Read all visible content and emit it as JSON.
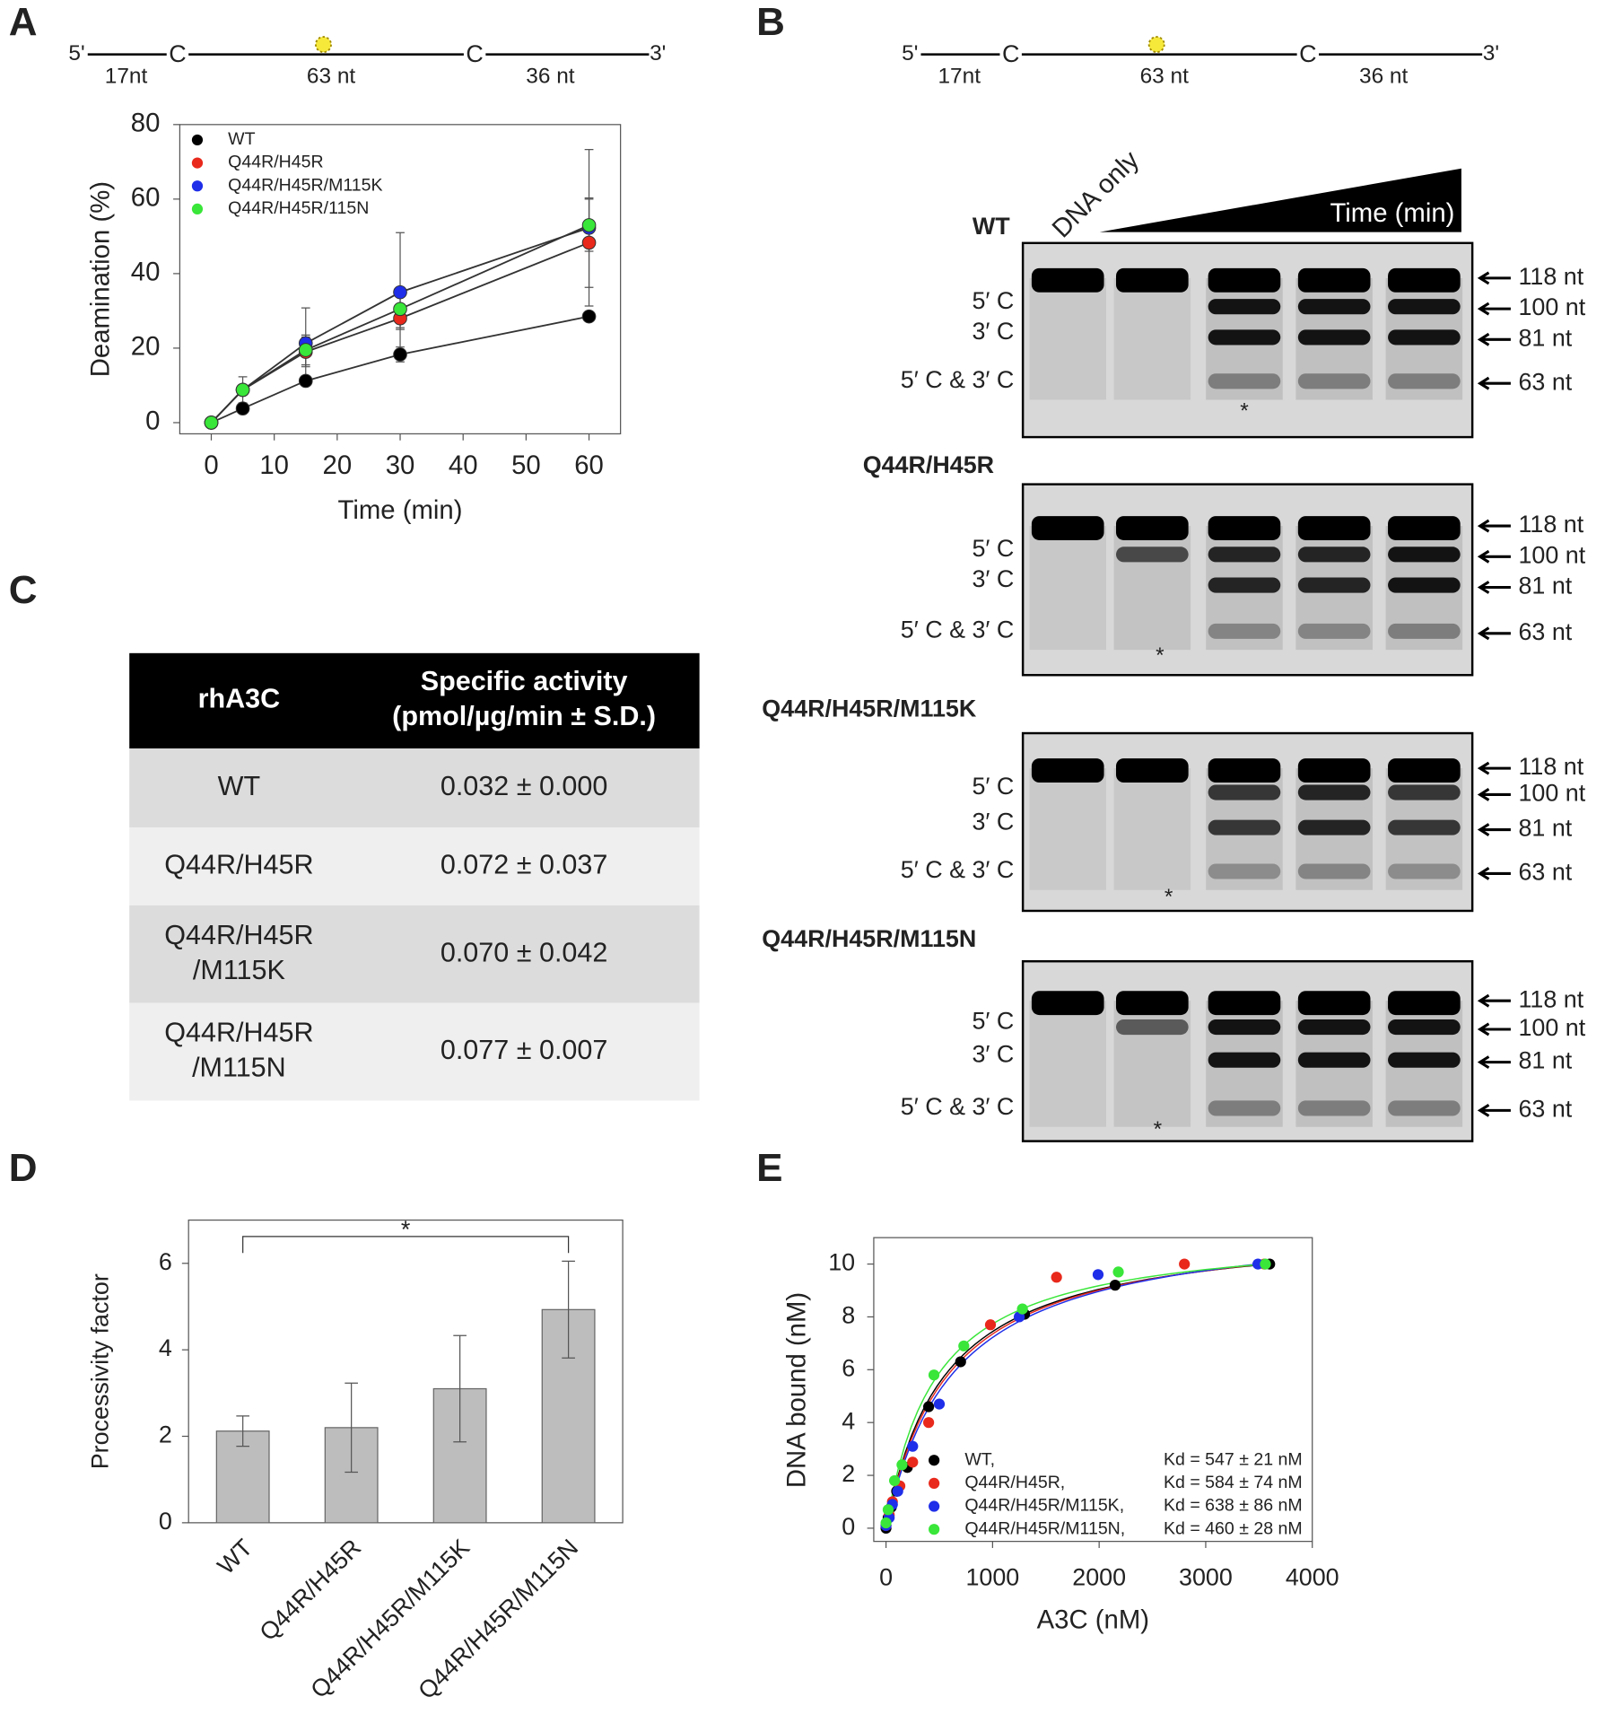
{
  "panel_labels": [
    "A",
    "B",
    "C",
    "D",
    "E"
  ],
  "schematic": {
    "five_prime": "5'",
    "three_prime": "3'",
    "sites": [
      "C",
      "C"
    ],
    "segments": [
      "17nt",
      "63 nt",
      "36 nt"
    ]
  },
  "chart_data": [
    {
      "type": "line",
      "ylabel": "Deamination (%)",
      "xlabel": "Time (min)",
      "x": [
        0,
        5,
        15,
        30,
        60
      ],
      "xlim": [
        -5,
        65
      ],
      "xticks": [
        0,
        10,
        20,
        30,
        40,
        50,
        60
      ],
      "ylim": [
        -3,
        80
      ],
      "yticks": [
        0,
        20,
        40,
        60,
        80
      ],
      "series": [
        {
          "name": "WT",
          "color": "#000000",
          "values": [
            0,
            3.8,
            11.2,
            18.3,
            28.5
          ],
          "errors": [
            0,
            0.5,
            1,
            2,
            1
          ]
        },
        {
          "name": "Q44R/H45R",
          "color": "#e8291c",
          "values": [
            0,
            8.8,
            19,
            28,
            48.3
          ],
          "errors": [
            0,
            1,
            4,
            3,
            12
          ]
        },
        {
          "name": "Q44R/H45R/M115K",
          "color": "#1f2ee8",
          "values": [
            0,
            8.8,
            21.3,
            35,
            52.3
          ],
          "errors": [
            0,
            1,
            9.5,
            16,
            21
          ]
        },
        {
          "name": "Q44R/H45R/115N",
          "color": "#39e639",
          "values": [
            0,
            8.8,
            19.5,
            30.5,
            53
          ],
          "errors": [
            0,
            3.5,
            4,
            5,
            7
          ]
        }
      ]
    },
    {
      "type": "bar",
      "ylabel": "Processivity factor",
      "categories": [
        "WT",
        "Q44R/H45R",
        "Q44R/H45R/M115K",
        "Q44R/H45R/M115N"
      ],
      "values": [
        2.12,
        2.2,
        3.1,
        4.93
      ],
      "errors": [
        0.35,
        1.03,
        1.23,
        1.12
      ],
      "color": "#bdbdbd",
      "ylim": [
        0,
        7
      ],
      "yticks": [
        0,
        2,
        4,
        6
      ],
      "annotation": "*"
    },
    {
      "type": "scatter",
      "ylabel": "DNA bound (nM)",
      "xlabel": "A3C (nM)",
      "xlim": [
        -115,
        4000
      ],
      "xticks": [
        0,
        1000,
        2000,
        3000,
        4000
      ],
      "ylim": [
        -0.5,
        11
      ],
      "yticks": [
        0,
        2,
        4,
        6,
        8,
        10
      ],
      "series": [
        {
          "name": "WT,",
          "kd_label": "Kd = 547 ± 21 nM",
          "kd": 547,
          "color": "#000000",
          "x": [
            0,
            20,
            50,
            100,
            200,
            400,
            700,
            1300,
            2150,
            3600
          ],
          "y": [
            0,
            0.4,
            0.8,
            1.4,
            2.3,
            4.6,
            6.3,
            8.1,
            9.2,
            10
          ]
        },
        {
          "name": "Q44R/H45R,",
          "kd_label": "Kd = 584 ± 74 nM",
          "kd": 584,
          "color": "#e8291c",
          "x": [
            0,
            30,
            60,
            130,
            250,
            400,
            980,
            1600,
            2800,
            3550
          ],
          "y": [
            0.1,
            0.5,
            1,
            1.6,
            2.5,
            4,
            7.7,
            9.5,
            10,
            10
          ]
        },
        {
          "name": "Q44R/H45R/M115K,",
          "kd_label": "Kd = 638 ± 86 nM",
          "kd": 638,
          "color": "#1f2ee8",
          "x": [
            0,
            30,
            60,
            110,
            250,
            500,
            1250,
            1990,
            3490
          ],
          "y": [
            0.1,
            0.4,
            0.9,
            1.4,
            3.1,
            4.7,
            8,
            9.6,
            10
          ]
        },
        {
          "name": "Q44R/H45R/M115N,",
          "kd_label": "Kd = 460 ± 28 nM",
          "kd": 460,
          "color": "#39e639",
          "x": [
            0,
            20,
            80,
            150,
            450,
            730,
            1280,
            2180,
            3560
          ],
          "y": [
            0.2,
            0.7,
            1.8,
            2.4,
            5.8,
            6.9,
            8.3,
            9.7,
            10
          ]
        }
      ]
    }
  ],
  "table": {
    "header": [
      [
        "rhA3C"
      ],
      [
        "Specific activity",
        "(pmol/µg/min ± S.D.)"
      ]
    ],
    "rows": [
      [
        [
          "WT"
        ],
        [
          "0.032 ± 0.000"
        ]
      ],
      [
        [
          "Q44R/H45R"
        ],
        [
          "0.072 ± 0.037"
        ]
      ],
      [
        [
          "Q44R/H45R",
          "/M115K"
        ],
        [
          "0.070 ± 0.042"
        ]
      ],
      [
        [
          "Q44R/H45R",
          "/M115N"
        ],
        [
          "0.077 ± 0.007"
        ]
      ]
    ]
  },
  "gel": {
    "lane_header": "DNA only",
    "gradient_label": "Time (min)",
    "band_labels": [
      "5′ C",
      "3′ C",
      "5′ C & 3′ C"
    ],
    "sizes": [
      "118 nt",
      "100 nt",
      "81 nt",
      "63 nt"
    ],
    "panels": [
      {
        "title": "WT",
        "star": "*"
      },
      {
        "title": "Q44R/H45R",
        "star": "*"
      },
      {
        "title": "Q44R/H45R/M115K",
        "star": "*"
      },
      {
        "title": "Q44R/H45R/M115N",
        "star": "*"
      }
    ]
  }
}
